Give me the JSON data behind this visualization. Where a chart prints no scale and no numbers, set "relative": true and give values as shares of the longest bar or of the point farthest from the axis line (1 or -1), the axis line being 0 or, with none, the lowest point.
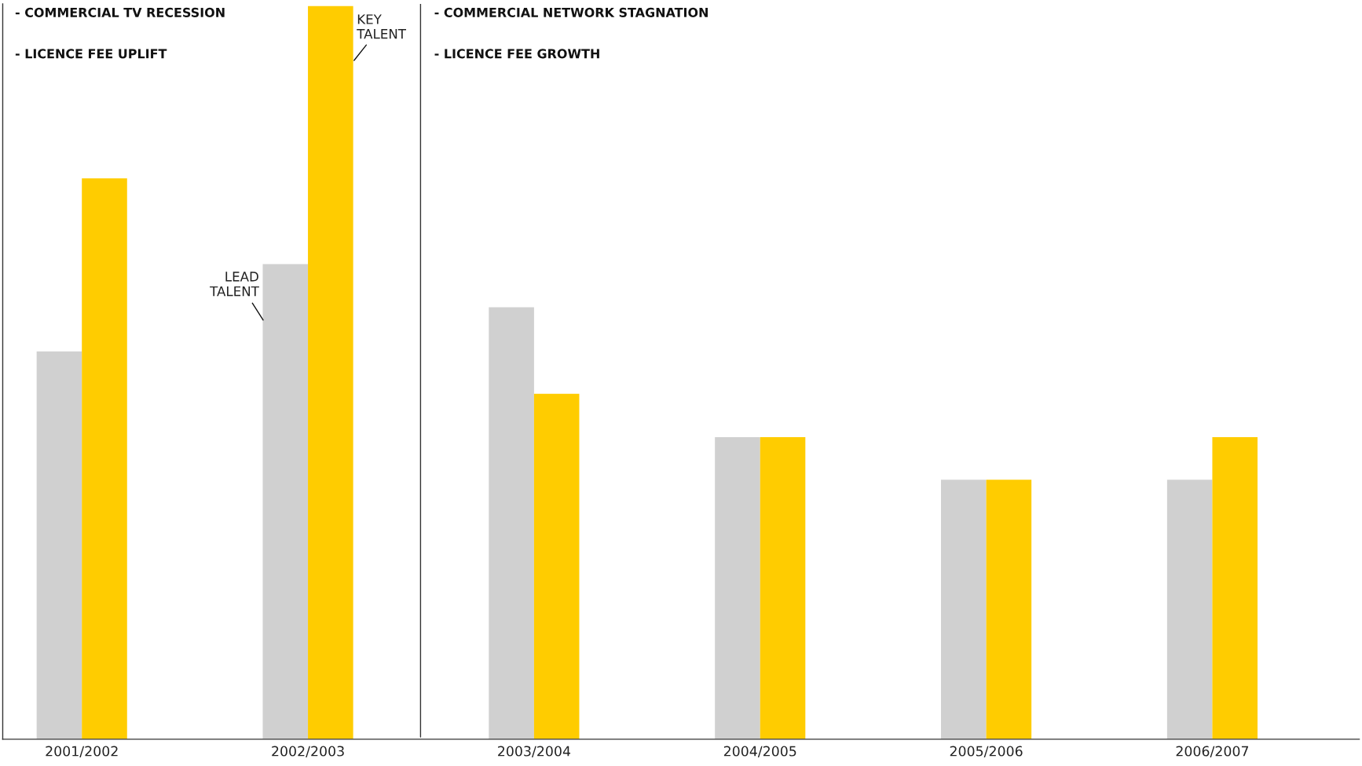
{
  "chart_data": {
    "type": "bar",
    "relative": true,
    "categories": [
      "2001/2002",
      "2002/2003",
      "2003/2004",
      "2004/2005",
      "2005/2006",
      "2006/2007"
    ],
    "series": [
      {
        "color": "#d0d0d0",
        "values": [
          0.529,
          0.648,
          0.589,
          0.412,
          0.354,
          0.354
        ]
      },
      {
        "color": "#ffcc00",
        "values": [
          0.765,
          1.0,
          0.471,
          0.412,
          0.354,
          0.412
        ]
      }
    ],
    "annotations": [
      "- COMMERCIAL TV RECESSION",
      "- LICENCE FEE UPLIFT",
      "- COMMERCIAL NETWORK STAGNATION",
      "- LICENCE FEE GROWTH",
      "LEAD\nTALENT",
      "KEY\nTALENT"
    ],
    "grid": false,
    "legend": false
  }
}
